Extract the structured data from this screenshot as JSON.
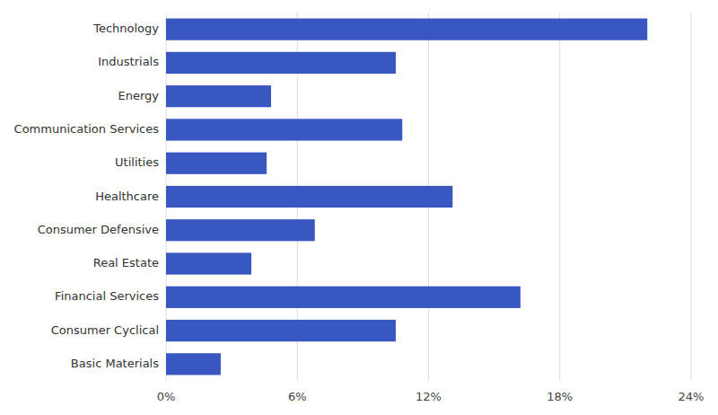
{
  "chart_data": {
    "type": "bar",
    "orientation": "horizontal",
    "categories": [
      "Technology",
      "Industrials",
      "Energy",
      "Communication Services",
      "Utilities",
      "Healthcare",
      "Consumer Defensive",
      "Real Estate",
      "Financial Services",
      "Consumer Cyclical",
      "Basic Materials"
    ],
    "values": [
      22.0,
      10.5,
      4.8,
      10.8,
      4.6,
      13.1,
      6.8,
      3.9,
      16.2,
      10.5,
      2.5
    ],
    "color": "#3957c0",
    "xlim": [
      0,
      24
    ],
    "xticks": [
      {
        "value": 0,
        "label": "0%"
      },
      {
        "value": 6,
        "label": "6%"
      },
      {
        "value": 12,
        "label": "12%"
      },
      {
        "value": 18,
        "label": "18%"
      },
      {
        "value": 24,
        "label": "24%"
      }
    ],
    "grid": true
  }
}
